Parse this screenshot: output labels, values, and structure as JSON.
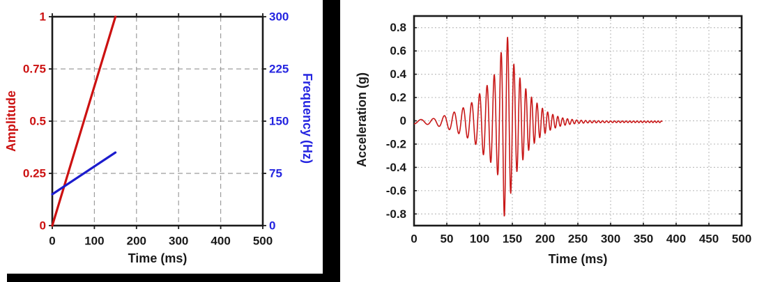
{
  "page": {
    "background": "#ffffff",
    "divider_color": "#000000"
  },
  "chart_data": [
    {
      "type": "line",
      "name": "amplitude-frequency-vs-time",
      "xlabel": "Time (ms)",
      "xlim": [
        0,
        500
      ],
      "x_ticks": {
        "values": [
          0,
          100,
          200,
          300,
          400,
          500
        ],
        "labels": [
          "0",
          "100",
          "200",
          "300",
          "400",
          "500"
        ]
      },
      "grid": "dashed",
      "grid_color": "#9c9c9c",
      "frame_color": "#1a1a1a",
      "x_tick_label_color": "#1a1a1a",
      "left_axis": {
        "label": "Amplitude",
        "color": "#cc1111",
        "lim": [
          0,
          1
        ],
        "ticks": {
          "values": [
            0,
            0.25,
            0.5,
            0.75,
            1
          ],
          "labels": [
            "0",
            "0.25",
            "0.5",
            "0.75",
            "1"
          ]
        }
      },
      "right_axis": {
        "label": "Frequency (Hz)",
        "color": "#2424e0",
        "lim": [
          0,
          300
        ],
        "ticks": {
          "values": [
            0,
            75,
            150,
            225,
            300
          ],
          "labels": [
            "0",
            "75",
            "150",
            "225",
            "300"
          ]
        }
      },
      "series": [
        {
          "name": "amplitude-ramp",
          "axis": "left",
          "color": "#cc1111",
          "width": 3.2,
          "points": [
            [
              0,
              0
            ],
            [
              150,
              1
            ]
          ]
        },
        {
          "name": "frequency-sweep",
          "axis": "right",
          "color": "#1c1ccd",
          "width": 3.2,
          "points": [
            [
              0,
              45
            ],
            [
              150,
              105
            ]
          ]
        }
      ]
    },
    {
      "type": "line",
      "name": "acceleration-vs-time",
      "xlabel": "Time (ms)",
      "ylabel": "Acceleration (g)",
      "xlim": [
        0,
        500
      ],
      "ylim": [
        -0.9,
        0.9
      ],
      "x_ticks": {
        "values": [
          0,
          50,
          100,
          150,
          200,
          250,
          300,
          350,
          400,
          450,
          500
        ],
        "labels": [
          "0",
          "50",
          "100",
          "150",
          "200",
          "250",
          "300",
          "350",
          "400",
          "450",
          "500"
        ]
      },
      "y_ticks": {
        "values": [
          0.8,
          0.6,
          0.4,
          0.2,
          0,
          -0.2,
          -0.4,
          -0.6,
          -0.8
        ],
        "labels": [
          "0.8",
          "0.6",
          "0.4",
          "0.2",
          "0",
          "-0.2",
          "-0.4",
          "-0.6",
          "-0.8"
        ]
      },
      "grid": "dotted",
      "grid_color": "#b8b8b8",
      "frame_color": "#1a1a1a",
      "tick_label_color": "#1a1a1a",
      "signal": {
        "kind": "linear-chirp-wavelet",
        "color": "#c81818",
        "width": 1.6,
        "t_start_ms": 0,
        "t_end_ms": 379,
        "dt_ms": 0.4,
        "f0_hz": 45,
        "sweep_hz_per_ms": 0.4,
        "baseline_g": -0.008,
        "peak_g": 0.82,
        "trough_g": -0.74,
        "peak_time_ms": 138,
        "envelope_keypoints": [
          [
            0,
            0.018
          ],
          [
            15,
            0.02
          ],
          [
            30,
            0.028
          ],
          [
            45,
            0.05
          ],
          [
            60,
            0.08
          ],
          [
            75,
            0.12
          ],
          [
            85,
            0.15
          ],
          [
            95,
            0.2
          ],
          [
            105,
            0.28
          ],
          [
            115,
            0.33
          ],
          [
            122,
            0.4
          ],
          [
            128,
            0.46
          ],
          [
            133,
            0.6
          ],
          [
            137,
            0.82
          ],
          [
            140,
            0.8
          ],
          [
            143,
            0.72
          ],
          [
            147,
            0.63
          ],
          [
            152,
            0.5
          ],
          [
            157,
            0.43
          ],
          [
            163,
            0.36
          ],
          [
            170,
            0.29
          ],
          [
            178,
            0.22
          ],
          [
            186,
            0.17
          ],
          [
            195,
            0.12
          ],
          [
            205,
            0.08
          ],
          [
            215,
            0.055
          ],
          [
            225,
            0.035
          ],
          [
            235,
            0.025
          ],
          [
            248,
            0.015
          ],
          [
            265,
            0.01
          ],
          [
            300,
            0.007
          ],
          [
            379,
            0.007
          ]
        ]
      }
    }
  ]
}
